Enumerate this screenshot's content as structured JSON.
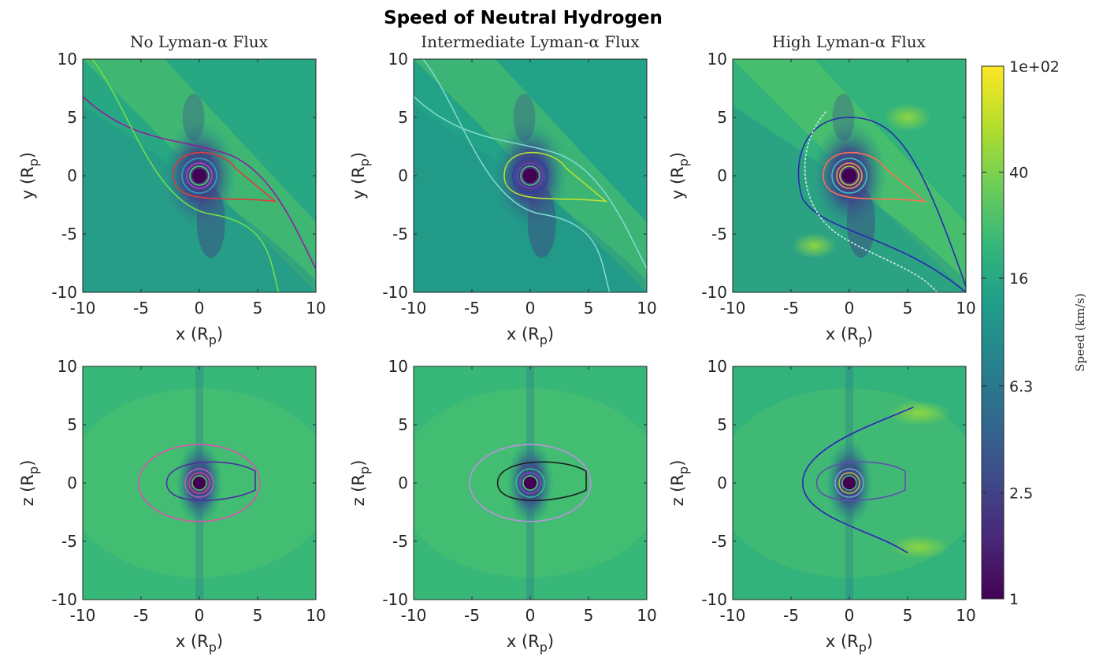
{
  "chart_data": {
    "type": "heatmap",
    "title": "Speed of Neutral Hydrogen",
    "colormap": "viridis",
    "color_scale": "log",
    "colorbar": {
      "label": "Speed (km/s)",
      "range": [
        1,
        100
      ],
      "ticks": [
        {
          "value": 1,
          "label": "1"
        },
        {
          "value": 2.5,
          "label": "2.5"
        },
        {
          "value": 6.3,
          "label": "6.3"
        },
        {
          "value": 16,
          "label": "16"
        },
        {
          "value": 40,
          "label": "40"
        },
        {
          "value": 100,
          "label": "1e+02"
        }
      ]
    },
    "x_ticks": [
      "-10",
      "-5",
      "0",
      "5",
      "10"
    ],
    "y_ticks": [
      "10",
      "5",
      "0",
      "-5",
      "-10"
    ],
    "xlim": [
      -10,
      10
    ],
    "ylim": [
      -10,
      10
    ],
    "panels": [
      {
        "id": "xy-none",
        "plane": "xy",
        "title": "No Lyman-α Flux",
        "xlabel": "x (R",
        "xsub": "p",
        "ylabel": "y (R",
        "ysub": "p",
        "base_speed": 16
      },
      {
        "id": "xy-mid",
        "plane": "xy",
        "title": "Intermediate Lyman-α Flux",
        "xlabel": "x (R",
        "xsub": "p",
        "ylabel": "y (R",
        "ysub": "p",
        "base_speed": 14
      },
      {
        "id": "xy-high",
        "plane": "xy",
        "title": "High Lyman-α Flux",
        "xlabel": "x (R",
        "xsub": "p",
        "ylabel": "y (R",
        "ysub": "p",
        "base_speed": 20
      },
      {
        "id": "xz-none",
        "plane": "xz",
        "title": "",
        "xlabel": "x (R",
        "xsub": "p",
        "ylabel": "z (R",
        "ysub": "p",
        "base_speed": 22
      },
      {
        "id": "xz-mid",
        "plane": "xz",
        "title": "",
        "xlabel": "x (R",
        "xsub": "p",
        "ylabel": "z (R",
        "ysub": "p",
        "base_speed": 22
      },
      {
        "id": "xz-high",
        "plane": "xz",
        "title": "",
        "xlabel": "x (R",
        "xsub": "p",
        "ylabel": "z (R",
        "ysub": "p",
        "base_speed": 20
      }
    ]
  }
}
